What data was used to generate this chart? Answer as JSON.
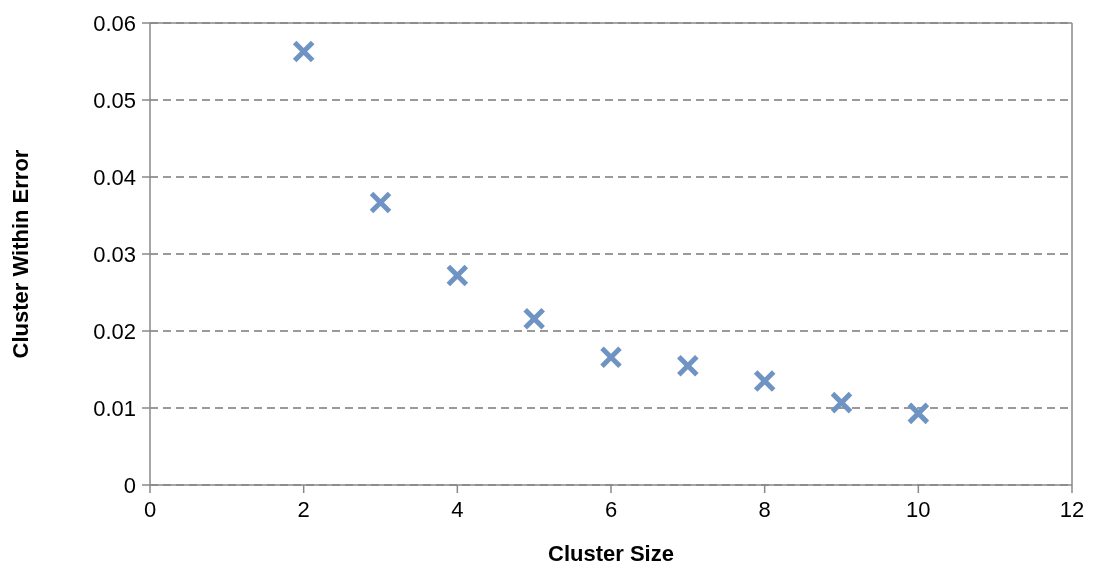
{
  "chart_data": {
    "type": "scatter",
    "xlabel": "Cluster Size",
    "ylabel": "Cluster Within Error",
    "x": [
      2,
      3,
      4,
      5,
      6,
      7,
      8,
      9,
      10
    ],
    "values": [
      0.0563,
      0.0367,
      0.0272,
      0.0216,
      0.0166,
      0.0155,
      0.0135,
      0.0107,
      0.0093
    ],
    "color": "#6f94c4",
    "marker": "cross",
    "xlim": [
      0,
      12
    ],
    "xticks": [
      0,
      2,
      4,
      6,
      8,
      10,
      12
    ],
    "ylim": [
      0,
      0.06
    ],
    "yticks": [
      0,
      0.01,
      0.02,
      0.03,
      0.04,
      0.05,
      0.06
    ],
    "grid": "y"
  }
}
